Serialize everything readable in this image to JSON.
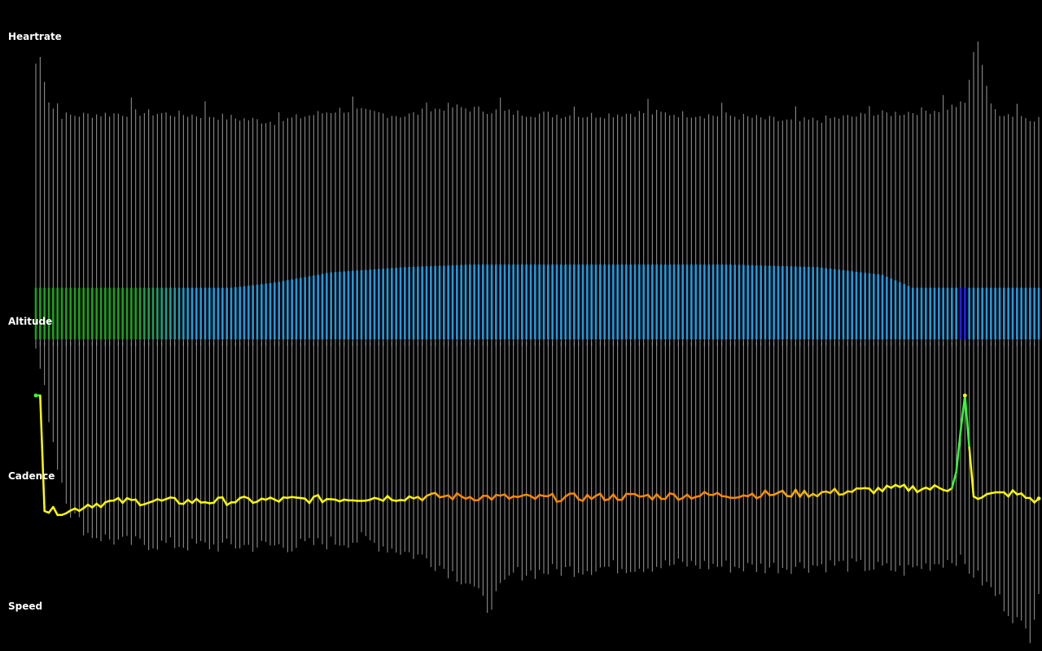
{
  "labels": {
    "heartrate": "Heartrate",
    "altitude": "Altitude",
    "cadence": "Cadence",
    "speed": "Speed"
  },
  "colors": {
    "background": "#000000",
    "heartrate_lines": "#9a9a9a",
    "speed_lines": "#9a9a9a",
    "altitude_low": "#1aa31a",
    "altitude_high": "#1e9be0",
    "altitude_highlight": "#2020ff",
    "cadence_low": "#ffff00",
    "cadence_high": "#ff8800",
    "cadence_spike": "#33ff33"
  },
  "chart_data": {
    "type": "line",
    "title": "",
    "xlabel": "",
    "ylabel": "",
    "n_samples": 232,
    "series": [
      {
        "name": "Heartrate",
        "style": "vertical-lines",
        "knots": [
          [
            0,
            0.92
          ],
          [
            1,
            0.94
          ],
          [
            3,
            0.8
          ],
          [
            5,
            0.75
          ],
          [
            25,
            0.76
          ],
          [
            40,
            0.75
          ],
          [
            55,
            0.73
          ],
          [
            70,
            0.77
          ],
          [
            85,
            0.75
          ],
          [
            95,
            0.78
          ],
          [
            110,
            0.76
          ],
          [
            125,
            0.75
          ],
          [
            140,
            0.76
          ],
          [
            160,
            0.75
          ],
          [
            175,
            0.73
          ],
          [
            190,
            0.75
          ],
          [
            208,
            0.77
          ],
          [
            214,
            0.79
          ],
          [
            216,
            0.95
          ],
          [
            217,
            1.0
          ],
          [
            218,
            0.92
          ],
          [
            220,
            0.78
          ],
          [
            222,
            0.76
          ],
          [
            231,
            0.74
          ]
        ]
      },
      {
        "name": "Altitude",
        "style": "filled-bars",
        "knots": [
          [
            0,
            0.2
          ],
          [
            15,
            0.2
          ],
          [
            45,
            0.2
          ],
          [
            55,
            0.22
          ],
          [
            68,
            0.26
          ],
          [
            85,
            0.28
          ],
          [
            100,
            0.29
          ],
          [
            130,
            0.29
          ],
          [
            160,
            0.29
          ],
          [
            180,
            0.28
          ],
          [
            195,
            0.25
          ],
          [
            202,
            0.2
          ],
          [
            215,
            0.2
          ],
          [
            231,
            0.2
          ]
        ]
      },
      {
        "name": "Cadence",
        "style": "line",
        "knots": [
          [
            0,
            0.77
          ],
          [
            1,
            0.77
          ],
          [
            2,
            0.06
          ],
          [
            8,
            0.06
          ],
          [
            12,
            0.1
          ],
          [
            20,
            0.12
          ],
          [
            40,
            0.12
          ],
          [
            60,
            0.13
          ],
          [
            75,
            0.14
          ],
          [
            95,
            0.15
          ],
          [
            115,
            0.14
          ],
          [
            140,
            0.15
          ],
          [
            160,
            0.16
          ],
          [
            180,
            0.17
          ],
          [
            200,
            0.2
          ],
          [
            211,
            0.2
          ],
          [
            212,
            0.3
          ],
          [
            213,
            0.55
          ],
          [
            214,
            0.77
          ],
          [
            215,
            0.45
          ],
          [
            216,
            0.15
          ],
          [
            225,
            0.17
          ],
          [
            231,
            0.12
          ]
        ]
      },
      {
        "name": "Speed",
        "style": "vertical-lines",
        "knots": [
          [
            0,
            0.98
          ],
          [
            2,
            0.84
          ],
          [
            5,
            0.6
          ],
          [
            8,
            0.45
          ],
          [
            12,
            0.38
          ],
          [
            20,
            0.35
          ],
          [
            40,
            0.34
          ],
          [
            60,
            0.34
          ],
          [
            75,
            0.36
          ],
          [
            90,
            0.3
          ],
          [
            100,
            0.22
          ],
          [
            104,
            0.14
          ],
          [
            110,
            0.25
          ],
          [
            130,
            0.27
          ],
          [
            150,
            0.28
          ],
          [
            165,
            0.27
          ],
          [
            185,
            0.28
          ],
          [
            200,
            0.26
          ],
          [
            212,
            0.3
          ],
          [
            220,
            0.2
          ],
          [
            227,
            0.08
          ],
          [
            229,
            0.05
          ],
          [
            231,
            0.2
          ]
        ]
      }
    ]
  }
}
